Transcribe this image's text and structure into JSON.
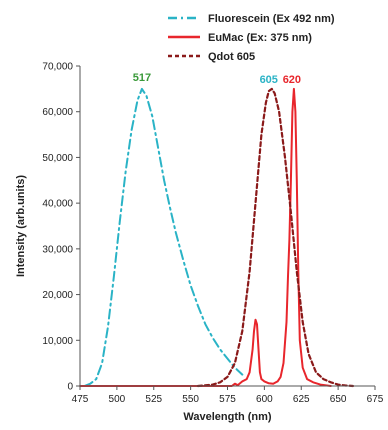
{
  "chart_data": {
    "type": "line",
    "title": "",
    "xlabel": "Wavelength (nm)",
    "ylabel": "Intensity (arb.units)",
    "xlim": [
      475,
      675
    ],
    "ylim": [
      0,
      70000
    ],
    "x_ticks": [
      475,
      500,
      525,
      550,
      575,
      600,
      625,
      650,
      675
    ],
    "x_tick_labels": [
      "475",
      "500",
      "525",
      "550",
      "575",
      "600",
      "625",
      "650",
      "675"
    ],
    "y_ticks": [
      0,
      10000,
      20000,
      30000,
      40000,
      50000,
      60000,
      70000
    ],
    "y_tick_labels": [
      "0",
      "10,000",
      "20,000",
      "30,000",
      "40,000",
      "50,000",
      "60,000",
      "70,000"
    ],
    "grid": false,
    "legend_position": "top",
    "series": [
      {
        "name": "Fluorescein (Ex 492 nm)",
        "color": "#2ab3c6",
        "style": "dash-dot",
        "x": [
          478,
          482,
          486,
          490,
          494,
          498,
          502,
          506,
          510,
          514,
          517,
          520,
          524,
          528,
          532,
          536,
          540,
          545,
          550,
          555,
          560,
          565,
          570,
          575,
          580,
          585
        ],
        "y": [
          0,
          500,
          1500,
          5000,
          13000,
          24000,
          36000,
          47000,
          56000,
          62500,
          65000,
          63500,
          59000,
          52000,
          45000,
          39000,
          33500,
          27500,
          22000,
          17500,
          13500,
          10500,
          8000,
          6000,
          4000,
          2500
        ]
      },
      {
        "name": "EuMac (Ex: 375 nm)",
        "color": "#e8262c",
        "style": "solid",
        "x": [
          475,
          578,
          580,
          582,
          585,
          588,
          590,
          592,
          593,
          594,
          595,
          596,
          597,
          598,
          600,
          603,
          606,
          609,
          611,
          613,
          615,
          616,
          617,
          618,
          619,
          620,
          621,
          622,
          623,
          624,
          626,
          629,
          633,
          638,
          645
        ],
        "y": [
          0,
          0,
          500,
          200,
          1000,
          1500,
          3000,
          8000,
          12000,
          14500,
          13500,
          8000,
          3000,
          1500,
          1000,
          600,
          500,
          1000,
          2000,
          5000,
          14000,
          24000,
          32000,
          45000,
          60000,
          65000,
          60000,
          45000,
          25000,
          10000,
          4000,
          1500,
          800,
          300,
          0
        ]
      },
      {
        "name": "Qdot 605",
        "color": "#8b1a1a",
        "style": "dotted",
        "x": [
          555,
          565,
          570,
          575,
          580,
          585,
          590,
          594,
          598,
          601,
          603,
          605,
          607,
          610,
          614,
          618,
          622,
          626,
          630,
          635,
          640,
          645,
          650,
          655,
          660
        ],
        "y": [
          0,
          300,
          800,
          2000,
          5000,
          12000,
          25000,
          40000,
          55000,
          62000,
          64500,
          65000,
          64000,
          60000,
          50000,
          38000,
          25000,
          14000,
          7000,
          3000,
          1500,
          800,
          300,
          100,
          0
        ]
      }
    ],
    "annotations": [
      {
        "text": "517",
        "x": 517,
        "y": 65000,
        "color": "#3a9a3a"
      },
      {
        "text": "605",
        "x": 605,
        "y": 65000,
        "color": "#2ab3c6"
      },
      {
        "text": "620",
        "x": 620,
        "y": 65000,
        "color": "#e8262c"
      }
    ]
  }
}
